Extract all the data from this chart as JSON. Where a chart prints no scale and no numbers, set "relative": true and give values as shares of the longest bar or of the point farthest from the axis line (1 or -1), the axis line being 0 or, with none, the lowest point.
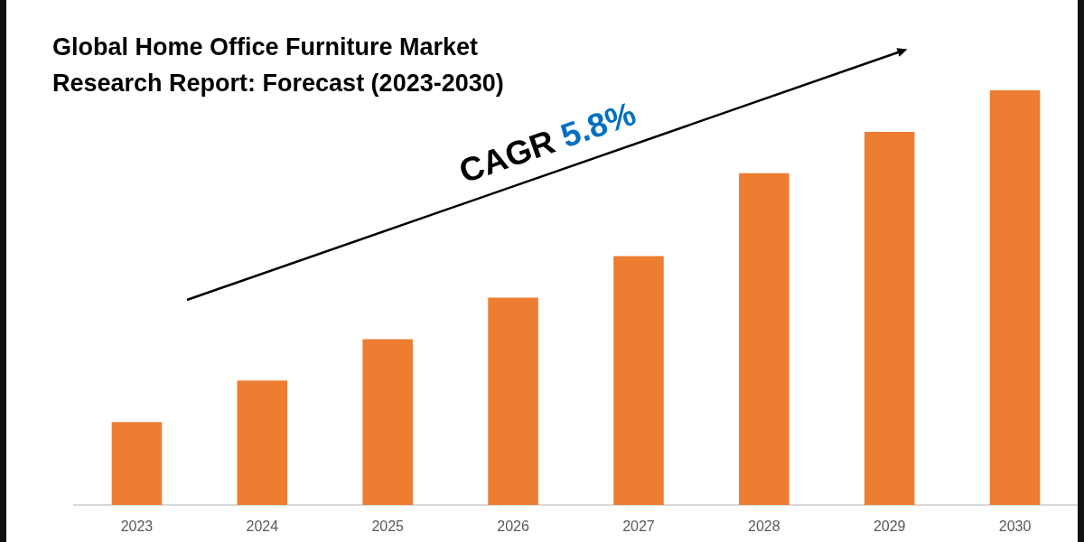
{
  "chart_data": {
    "type": "bar",
    "title": "Global Home Office Furniture Market Research Report: Forecast (2023-2030)",
    "categories": [
      "2023",
      "2024",
      "2025",
      "2026",
      "2027",
      "2028",
      "2029",
      "2030"
    ],
    "values": [
      0.2,
      0.3,
      0.4,
      0.5,
      0.6,
      0.8,
      0.9,
      1.0
    ],
    "color": "#ed7d31",
    "relative": true,
    "annotations": [
      "CAGR",
      "5.8%"
    ]
  }
}
